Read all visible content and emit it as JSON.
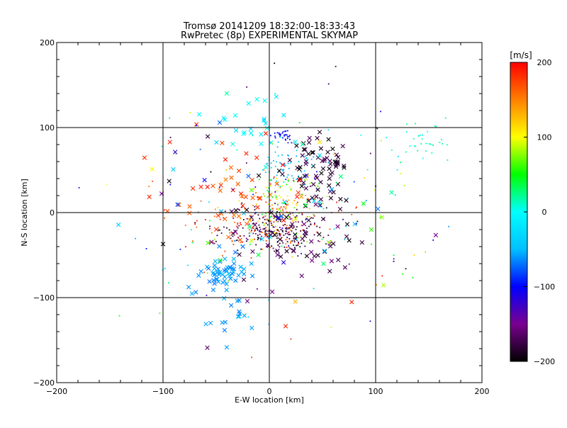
{
  "chart_data": {
    "type": "scatter",
    "title": "Tromsø 20141209 18:32:00-18:33:43",
    "subtitle": "RwPretec (8p) EXPERIMENTAL SKYMAP",
    "xlabel": "E-W location [km]",
    "ylabel": "N-S location [km]",
    "xlim": [
      -200,
      200
    ],
    "ylim": [
      -200,
      200
    ],
    "x_ticks": [
      -200,
      -100,
      0,
      100,
      200
    ],
    "y_ticks": [
      -200,
      -100,
      0,
      100,
      200
    ],
    "grid": true,
    "colorbar": {
      "label": "[m/s]",
      "range": [
        -200,
        200
      ],
      "ticks": [
        200,
        100,
        0,
        -100,
        -200
      ],
      "colors": [
        "#000000",
        "#7a0090",
        "#0000ff",
        "#00c0ff",
        "#00ffff",
        "#00ff00",
        "#ffff00",
        "#ff8000",
        "#ff0000"
      ]
    },
    "clusters": [
      {
        "center": [
          0,
          -20
        ],
        "spread": [
          25,
          12
        ],
        "count": 220,
        "velocity": [
          -200,
          -150
        ],
        "marker": "dot"
      },
      {
        "center": [
          -10,
          -20
        ],
        "spread": [
          35,
          15
        ],
        "count": 80,
        "velocity": [
          150,
          200
        ],
        "marker": "dot"
      },
      {
        "center": [
          10,
          0
        ],
        "spread": [
          15,
          15
        ],
        "count": 90,
        "velocity": [
          50,
          200
        ],
        "marker": "dot"
      },
      {
        "center": [
          15,
          55
        ],
        "spread": [
          12,
          10
        ],
        "count": 60,
        "velocity": [
          -60,
          -40
        ],
        "marker": "dot"
      },
      {
        "center": [
          15,
          90
        ],
        "spread": [
          6,
          4
        ],
        "count": 30,
        "velocity": [
          -110,
          -90
        ],
        "marker": "dot"
      },
      {
        "center": [
          15,
          25
        ],
        "spread": [
          15,
          15
        ],
        "count": 50,
        "velocity": [
          20,
          120
        ],
        "marker": "dot"
      },
      {
        "center": [
          50,
          50
        ],
        "spread": [
          15,
          20
        ],
        "count": 70,
        "velocity": [
          -200,
          -170
        ],
        "marker": "x"
      },
      {
        "center": [
          -45,
          -70
        ],
        "spread": [
          10,
          10
        ],
        "count": 50,
        "velocity": [
          -70,
          -50
        ],
        "marker": "x"
      },
      {
        "center": [
          -40,
          -110
        ],
        "spread": [
          15,
          25
        ],
        "count": 25,
        "velocity": [
          -70,
          -50
        ],
        "marker": "x"
      },
      {
        "center": [
          140,
          85
        ],
        "spread": [
          20,
          10
        ],
        "count": 35,
        "velocity": [
          0,
          30
        ],
        "marker": "dot"
      },
      {
        "center": [
          -40,
          30
        ],
        "spread": [
          25,
          30
        ],
        "count": 45,
        "velocity": [
          150,
          200
        ],
        "marker": "x"
      },
      {
        "center": [
          -20,
          110
        ],
        "spread": [
          20,
          20
        ],
        "count": 25,
        "velocity": [
          -30,
          20
        ],
        "marker": "x"
      },
      {
        "center": [
          30,
          -30
        ],
        "spread": [
          30,
          25
        ],
        "count": 60,
        "velocity": [
          -200,
          -150
        ],
        "marker": "x"
      },
      {
        "center": [
          0,
          0
        ],
        "spread": [
          70,
          60
        ],
        "count": 160,
        "velocity": [
          -200,
          200
        ],
        "marker": "dot"
      },
      {
        "center": [
          0,
          10
        ],
        "spread": [
          60,
          50
        ],
        "count": 70,
        "velocity": [
          -200,
          200
        ],
        "marker": "x"
      }
    ]
  }
}
